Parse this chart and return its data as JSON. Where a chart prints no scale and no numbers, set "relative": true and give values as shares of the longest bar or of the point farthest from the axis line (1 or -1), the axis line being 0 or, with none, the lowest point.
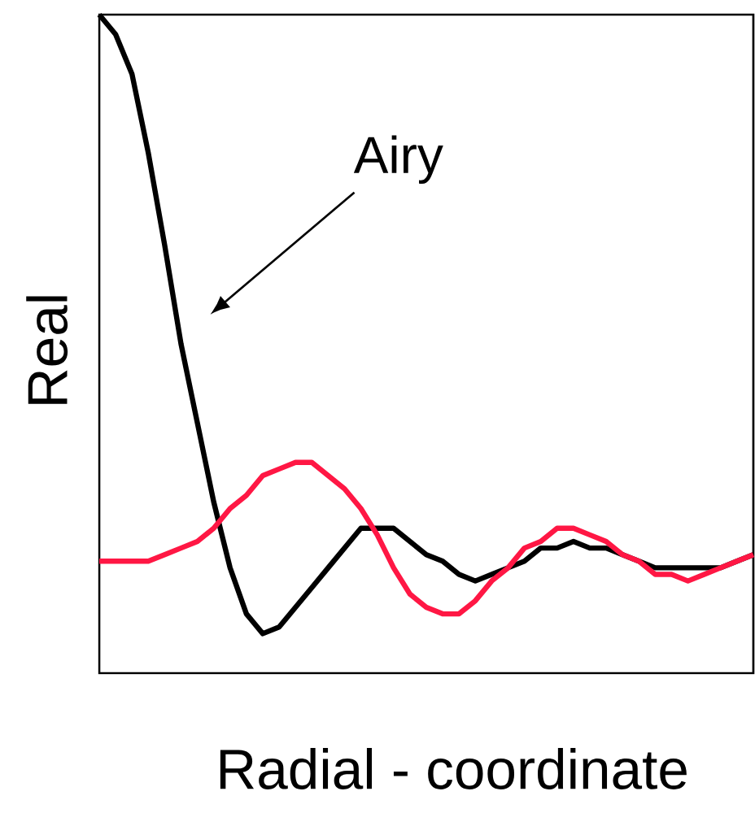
{
  "chart_data": {
    "type": "line",
    "relative": true,
    "xlabel": "Radial - coordinate",
    "ylabel": "Real",
    "annotations": [
      "Airy"
    ],
    "categories": [
      null,
      null,
      null,
      null,
      null,
      null,
      null,
      null,
      null,
      null,
      null,
      null,
      null,
      null,
      null,
      null,
      null,
      null,
      null,
      null,
      null,
      null,
      null,
      null,
      null,
      null,
      null,
      null,
      null,
      null,
      null,
      null,
      null,
      null,
      null,
      null,
      null,
      null,
      null,
      null,
      null
    ],
    "series": [
      {
        "color": "#000000",
        "values": [
          1.0,
          0.97,
          0.91,
          0.79,
          0.65,
          0.5,
          0.38,
          0.26,
          0.16,
          0.09,
          0.06,
          0.07,
          0.1,
          0.13,
          0.16,
          0.19,
          0.22,
          0.22,
          0.22,
          0.2,
          0.18,
          0.17,
          0.15,
          0.14,
          0.15,
          0.16,
          0.17,
          0.19,
          0.19,
          0.2,
          0.19,
          0.19,
          0.18,
          0.17,
          0.16,
          0.16,
          0.16,
          0.16,
          0.16,
          0.17,
          0.18
        ]
      },
      {
        "color": "#ff1744",
        "values": [
          0.17,
          0.17,
          0.17,
          0.17,
          0.18,
          0.19,
          0.2,
          0.22,
          0.25,
          0.27,
          0.3,
          0.31,
          0.32,
          0.32,
          0.3,
          0.28,
          0.25,
          0.21,
          0.16,
          0.12,
          0.1,
          0.09,
          0.09,
          0.11,
          0.14,
          0.16,
          0.19,
          0.2,
          0.22,
          0.22,
          0.21,
          0.2,
          0.18,
          0.17,
          0.15,
          0.15,
          0.14,
          0.15,
          0.16,
          0.17,
          0.18
        ]
      }
    ],
    "marker": "none",
    "line_style": "solid"
  }
}
